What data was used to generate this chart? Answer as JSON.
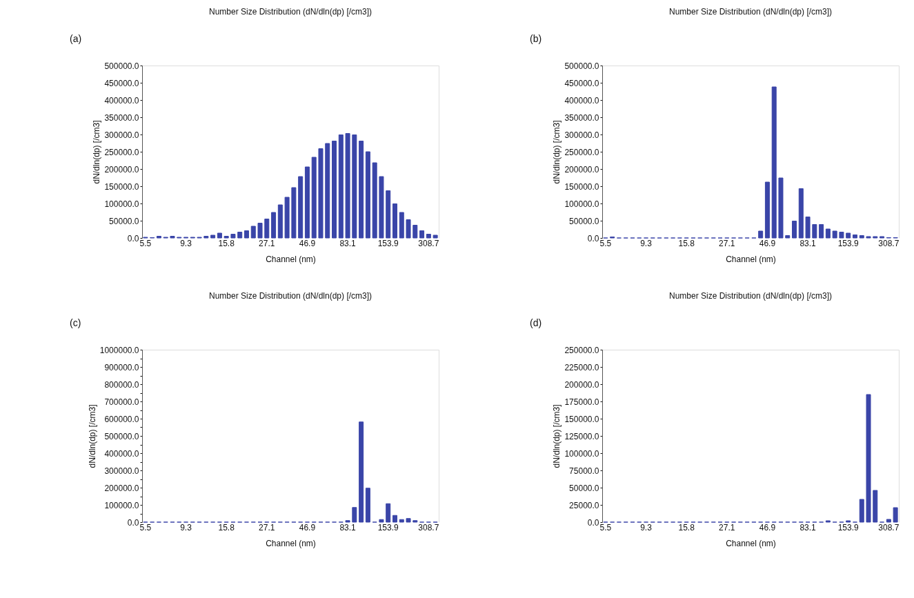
{
  "chart_data": [
    {
      "type": "bar",
      "title": "Number Size Distribution (dN/dln(dp) [/cm3])",
      "xlabel": "Channel (nm)",
      "ylabel": "dN/dln(dp) [/cm3]",
      "annotations": [
        "(a)"
      ],
      "grid": false,
      "legend": false,
      "categories": [
        "5.5",
        null,
        null,
        null,
        null,
        null,
        "9.3",
        null,
        null,
        null,
        null,
        null,
        "15.8",
        null,
        null,
        null,
        null,
        null,
        "27.1",
        null,
        null,
        null,
        null,
        null,
        "46.9",
        null,
        null,
        null,
        null,
        null,
        "83.1",
        null,
        null,
        null,
        null,
        null,
        "153.9",
        null,
        null,
        null,
        null,
        null,
        "308.7",
        null
      ],
      "series": [
        {
          "color": "#3a45a8",
          "values": [
            2000,
            1000,
            5000,
            2000,
            5000,
            2000,
            2000,
            2000,
            2000,
            5000,
            8000,
            14000,
            5000,
            11000,
            17000,
            21000,
            34000,
            43000,
            55000,
            74000,
            96000,
            118000,
            146000,
            178000,
            206000,
            234000,
            259000,
            274000,
            281000,
            299000,
            303000,
            299000,
            281000,
            250000,
            218000,
            178000,
            137000,
            99000,
            74000,
            53000,
            37000,
            21000,
            11000,
            8000
          ]
        }
      ],
      "ylim": [
        0,
        500000
      ],
      "yticks": [
        {
          "value": 0,
          "label": "0.0"
        },
        {
          "value": 50000,
          "label": "50000.0"
        },
        {
          "value": 100000,
          "label": "100000.0"
        },
        {
          "value": 150000,
          "label": "150000.0"
        },
        {
          "value": 200000,
          "label": "200000.0"
        },
        {
          "value": 250000,
          "label": "250000.0"
        },
        {
          "value": 300000,
          "label": "300000.0"
        },
        {
          "value": 350000,
          "label": "350000.0"
        },
        {
          "value": 400000,
          "label": "400000.0"
        },
        {
          "value": 450000,
          "label": "450000.0"
        },
        {
          "value": 500000,
          "label": "500000.0"
        }
      ]
    },
    {
      "type": "bar",
      "title": "Number Size Distribution (dN/dln(dp) [/cm3])",
      "xlabel": "Channel (nm)",
      "ylabel": "dN/dln(dp) [/cm3]",
      "annotations": [
        "(b)"
      ],
      "grid": false,
      "legend": false,
      "categories": [
        "5.5",
        null,
        null,
        null,
        null,
        null,
        "9.3",
        null,
        null,
        null,
        null,
        null,
        "15.8",
        null,
        null,
        null,
        null,
        null,
        "27.1",
        null,
        null,
        null,
        null,
        null,
        "46.9",
        null,
        null,
        null,
        null,
        null,
        "83.1",
        null,
        null,
        null,
        null,
        null,
        "153.9",
        null,
        null,
        null,
        null,
        null,
        "308.7",
        null
      ],
      "series": [
        {
          "color": "#3a45a8",
          "values": [
            0,
            3000,
            0,
            0,
            0,
            0,
            0,
            0,
            0,
            0,
            0,
            0,
            0,
            0,
            0,
            0,
            0,
            0,
            0,
            0,
            0,
            0,
            0,
            20000,
            162000,
            438000,
            174000,
            7000,
            49000,
            143000,
            61000,
            39000,
            39000,
            26000,
            20000,
            17000,
            14000,
            9000,
            7000,
            4000,
            4000,
            4000,
            1000,
            1000
          ]
        }
      ],
      "ylim": [
        0,
        500000
      ],
      "yticks": [
        {
          "value": 0,
          "label": "0.0"
        },
        {
          "value": 50000,
          "label": "50000.0"
        },
        {
          "value": 100000,
          "label": "100000.0"
        },
        {
          "value": 150000,
          "label": "150000.0"
        },
        {
          "value": 200000,
          "label": "200000.0"
        },
        {
          "value": 250000,
          "label": "250000.0"
        },
        {
          "value": 300000,
          "label": "300000.0"
        },
        {
          "value": 350000,
          "label": "350000.0"
        },
        {
          "value": 400000,
          "label": "400000.0"
        },
        {
          "value": 450000,
          "label": "450000.0"
        },
        {
          "value": 500000,
          "label": "500000.0"
        }
      ]
    },
    {
      "type": "bar",
      "title": "Number Size Distribution (dN/dln(dp) [/cm3])",
      "xlabel": "Channel (nm)",
      "ylabel": "dN/dln(dp) [/cm3]",
      "annotations": [
        "(c)"
      ],
      "grid": false,
      "legend": false,
      "categories": [
        "5.5",
        null,
        null,
        null,
        null,
        null,
        "9.3",
        null,
        null,
        null,
        null,
        null,
        "15.8",
        null,
        null,
        null,
        null,
        null,
        "27.1",
        null,
        null,
        null,
        null,
        null,
        "46.9",
        null,
        null,
        null,
        null,
        null,
        "83.1",
        null,
        null,
        null,
        null,
        null,
        "153.9",
        null,
        null,
        null,
        null,
        null,
        "308.7",
        null
      ],
      "series": [
        {
          "color": "#3a45a8",
          "values": [
            0,
            0,
            0,
            0,
            0,
            0,
            0,
            0,
            0,
            0,
            0,
            0,
            0,
            0,
            0,
            0,
            0,
            0,
            0,
            0,
            0,
            0,
            0,
            0,
            0,
            0,
            0,
            0,
            0,
            0,
            9000,
            85000,
            581000,
            197000,
            0,
            15000,
            107000,
            39000,
            15000,
            21000,
            9000,
            0,
            0,
            0
          ]
        }
      ],
      "ylim": [
        0,
        1000000
      ],
      "yticks": [
        {
          "value": 0,
          "label": "0.0"
        },
        {
          "value": 50000,
          "label": null
        },
        {
          "value": 100000,
          "label": "100000.0"
        },
        {
          "value": 150000,
          "label": null
        },
        {
          "value": 200000,
          "label": "200000.0"
        },
        {
          "value": 250000,
          "label": null
        },
        {
          "value": 300000,
          "label": "300000.0"
        },
        {
          "value": 350000,
          "label": null
        },
        {
          "value": 400000,
          "label": "400000.0"
        },
        {
          "value": 450000,
          "label": null
        },
        {
          "value": 500000,
          "label": "500000.0"
        },
        {
          "value": 550000,
          "label": null
        },
        {
          "value": 600000,
          "label": "600000.0"
        },
        {
          "value": 650000,
          "label": null
        },
        {
          "value": 700000,
          "label": "700000.0"
        },
        {
          "value": 750000,
          "label": null
        },
        {
          "value": 800000,
          "label": "800000.0"
        },
        {
          "value": 850000,
          "label": null
        },
        {
          "value": 900000,
          "label": "900000.0"
        },
        {
          "value": 950000,
          "label": null
        },
        {
          "value": 1000000,
          "label": "1000000.0"
        }
      ]
    },
    {
      "type": "bar",
      "title": "Number Size Distribution (dN/dln(dp) [/cm3])",
      "xlabel": "Channel (nm)",
      "ylabel": "dN/dln(dp) [/cm3]",
      "annotations": [
        "(d)"
      ],
      "grid": false,
      "legend": false,
      "categories": [
        "5.5",
        null,
        null,
        null,
        null,
        null,
        "9.3",
        null,
        null,
        null,
        null,
        null,
        "15.8",
        null,
        null,
        null,
        null,
        null,
        "27.1",
        null,
        null,
        null,
        null,
        null,
        "46.9",
        null,
        null,
        null,
        null,
        null,
        "83.1",
        null,
        null,
        null,
        null,
        null,
        "153.9",
        null,
        null,
        null,
        null,
        null,
        "308.7",
        null
      ],
      "series": [
        {
          "color": "#3a45a8",
          "values": [
            0,
            0,
            0,
            0,
            0,
            0,
            0,
            0,
            0,
            0,
            0,
            0,
            0,
            0,
            0,
            0,
            0,
            0,
            0,
            0,
            0,
            0,
            0,
            0,
            0,
            0,
            0,
            0,
            0,
            0,
            0,
            0,
            0,
            2000,
            0,
            0,
            2000,
            0,
            33000,
            185000,
            46000,
            0,
            4000,
            21000
          ]
        }
      ],
      "ylim": [
        0,
        250000
      ],
      "yticks": [
        {
          "value": 0,
          "label": "0.0"
        },
        {
          "value": 25000,
          "label": "25000.0"
        },
        {
          "value": 50000,
          "label": "50000.0"
        },
        {
          "value": 75000,
          "label": "75000.0"
        },
        {
          "value": 100000,
          "label": "100000.0"
        },
        {
          "value": 125000,
          "label": "125000.0"
        },
        {
          "value": 150000,
          "label": "150000.0"
        },
        {
          "value": 175000,
          "label": "175000.0"
        },
        {
          "value": 200000,
          "label": "200000.0"
        },
        {
          "value": 225000,
          "label": "225000.0"
        },
        {
          "value": 250000,
          "label": "250000.0"
        }
      ]
    }
  ]
}
